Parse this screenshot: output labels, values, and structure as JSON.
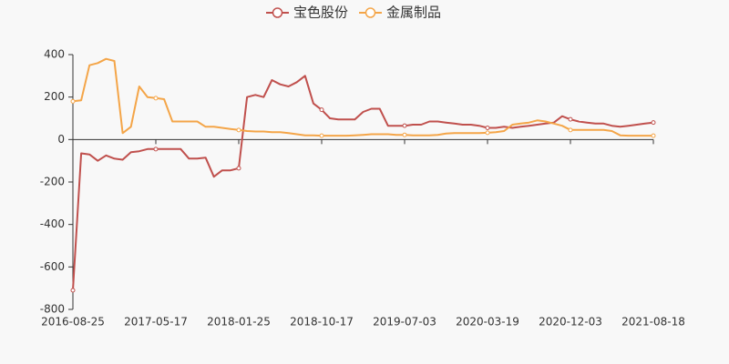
{
  "chart_data": {
    "type": "line",
    "categories": [
      "2016-08-25",
      null,
      null,
      null,
      null,
      null,
      null,
      null,
      null,
      null,
      "2017-05-17",
      null,
      null,
      null,
      null,
      null,
      null,
      null,
      null,
      null,
      "2018-01-25",
      null,
      null,
      null,
      null,
      null,
      null,
      null,
      null,
      null,
      "2018-10-17",
      null,
      null,
      null,
      null,
      null,
      null,
      null,
      null,
      null,
      "2019-07-03",
      null,
      null,
      null,
      null,
      null,
      null,
      null,
      null,
      null,
      "2020-03-19",
      null,
      null,
      null,
      null,
      null,
      null,
      null,
      null,
      null,
      "2020-12-03",
      null,
      null,
      null,
      null,
      null,
      null,
      null,
      null,
      null,
      "2021-08-18"
    ],
    "series": [
      {
        "name": "宝色股份",
        "color": "#c0504d",
        "values": [
          -710,
          -65,
          -70,
          -100,
          -75,
          -90,
          -95,
          -60,
          -55,
          -45,
          -45,
          -45,
          -45,
          -45,
          -90,
          -90,
          -85,
          -175,
          -145,
          -145,
          -135,
          200,
          210,
          200,
          280,
          260,
          250,
          270,
          300,
          170,
          140,
          100,
          95,
          95,
          95,
          130,
          145,
          145,
          65,
          65,
          65,
          70,
          70,
          85,
          85,
          80,
          75,
          70,
          70,
          65,
          55,
          55,
          60,
          55,
          60,
          65,
          70,
          75,
          80,
          110,
          95,
          85,
          80,
          75,
          75,
          65,
          60,
          65,
          70,
          75,
          80
        ]
      },
      {
        "name": "金属制品",
        "color": "#f4a548",
        "values": [
          180,
          185,
          350,
          360,
          380,
          370,
          30,
          60,
          250,
          200,
          195,
          190,
          85,
          85,
          85,
          85,
          60,
          60,
          55,
          50,
          45,
          40,
          38,
          38,
          35,
          35,
          30,
          25,
          20,
          20,
          18,
          18,
          18,
          18,
          20,
          22,
          25,
          25,
          25,
          22,
          22,
          20,
          20,
          20,
          22,
          28,
          30,
          30,
          30,
          30,
          32,
          35,
          40,
          70,
          75,
          80,
          90,
          85,
          75,
          65,
          45,
          45,
          45,
          45,
          45,
          40,
          20,
          18,
          18,
          18,
          18
        ]
      }
    ],
    "ylim": [
      -800,
      400
    ],
    "yticks": [
      -800,
      -600,
      -400,
      -200,
      0,
      200,
      400
    ],
    "grid": false
  }
}
